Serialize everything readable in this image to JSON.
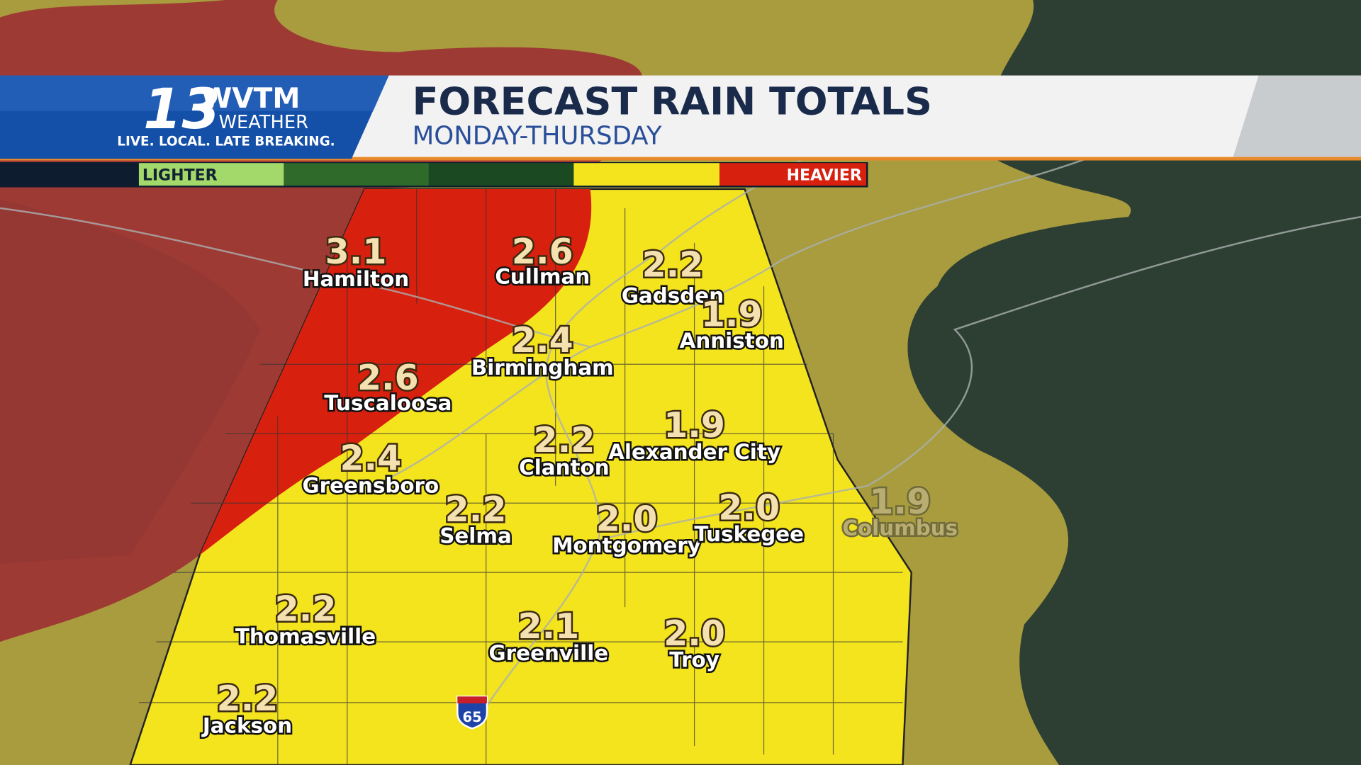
{
  "header": {
    "title": "FORECAST RAIN TOTALS",
    "subtitle": "MONDAY-THURSDAY"
  },
  "logo": {
    "number": "13",
    "call_sign": "WVTM",
    "brand": "WEATHER",
    "tagline": "LIVE. LOCAL. LATE BREAKING."
  },
  "legend": {
    "low": "LIGHTER",
    "high": "HEAVIER"
  },
  "highway": {
    "label": "65"
  },
  "cities": [
    {
      "name": "Hamilton",
      "total": "3.1"
    },
    {
      "name": "Cullman",
      "total": "2.6"
    },
    {
      "name": "Gadsden",
      "total": "2.2"
    },
    {
      "name": "Anniston",
      "total": "1.9"
    },
    {
      "name": "Birmingham",
      "total": "2.4"
    },
    {
      "name": "Tuscaloosa",
      "total": "2.6"
    },
    {
      "name": "Clanton",
      "total": "2.2"
    },
    {
      "name": "Alexander City",
      "total": "1.9"
    },
    {
      "name": "Greensboro",
      "total": "2.4"
    },
    {
      "name": "Selma",
      "total": "2.2"
    },
    {
      "name": "Montgomery",
      "total": "2.0"
    },
    {
      "name": "Tuskegee",
      "total": "2.0"
    },
    {
      "name": "Columbus",
      "total": "1.9"
    },
    {
      "name": "Thomasville",
      "total": "2.2"
    },
    {
      "name": "Greenville",
      "total": "2.1"
    },
    {
      "name": "Troy",
      "total": "2.0"
    },
    {
      "name": "Jackson",
      "total": "2.2"
    }
  ]
}
